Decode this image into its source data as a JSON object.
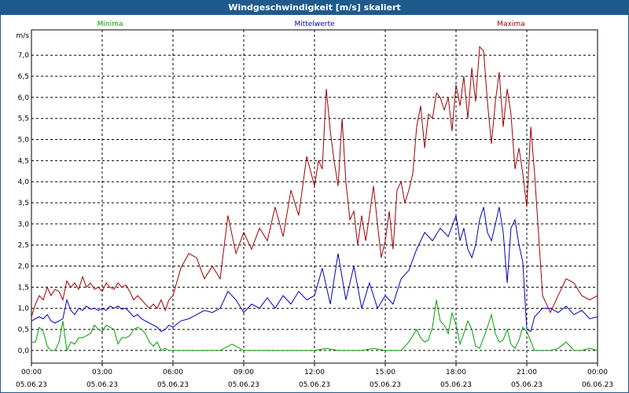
{
  "window": {
    "title": "Windgeschwindigkeit [m/s] skaliert"
  },
  "chart_data": {
    "type": "line",
    "title": "Windgeschwindigkeit [m/s] skaliert",
    "ylabel": "m/s",
    "xlabel": "",
    "ylim": [
      -0.3,
      7.6
    ],
    "xlim": [
      0,
      24
    ],
    "grid": true,
    "legend_placement": "top",
    "y_ticks": [
      "0,0",
      "0,5",
      "1,0",
      "1,5",
      "2,0",
      "2,5",
      "3,0",
      "3,5",
      "4,0",
      "4,5",
      "5,0",
      "5,5",
      "6,0",
      "6,5",
      "7,0"
    ],
    "x_ticks": [
      {
        "time": "00:00",
        "date": "05.06.23"
      },
      {
        "time": "03:00",
        "date": "05.06.23"
      },
      {
        "time": "06:00",
        "date": "05.06.23"
      },
      {
        "time": "09:00",
        "date": "05.06.23"
      },
      {
        "time": "12:00",
        "date": "05.06.23"
      },
      {
        "time": "15:00",
        "date": "05.06.23"
      },
      {
        "time": "18:00",
        "date": "05.06.23"
      },
      {
        "time": "21:00",
        "date": "05.06.23"
      },
      {
        "time": "00:00",
        "date": "06.06.23"
      }
    ],
    "series": [
      {
        "name": "Minima",
        "color": "#00a000",
        "x": [
          0,
          0.17,
          0.33,
          0.5,
          0.67,
          0.83,
          1,
          1.17,
          1.33,
          1.5,
          1.67,
          1.83,
          2,
          2.17,
          2.33,
          2.5,
          2.67,
          2.83,
          3,
          3.17,
          3.33,
          3.5,
          3.67,
          3.83,
          4,
          4.17,
          4.33,
          4.5,
          4.67,
          4.83,
          5,
          5.17,
          5.33,
          5.5,
          5.67,
          5.83,
          6,
          6.5,
          7,
          7.5,
          8,
          8.5,
          9,
          9.5,
          10,
          10.5,
          11,
          11.5,
          12,
          12.5,
          13,
          13.5,
          14,
          14.5,
          15,
          15.33,
          15.67,
          16,
          16.17,
          16.33,
          16.5,
          16.67,
          16.83,
          17,
          17.17,
          17.33,
          17.5,
          17.67,
          17.83,
          18,
          18.17,
          18.33,
          18.5,
          18.67,
          18.83,
          19,
          19.17,
          19.33,
          19.5,
          19.67,
          19.83,
          20,
          20.17,
          20.33,
          20.5,
          20.67,
          20.83,
          21,
          21.33,
          21.67,
          22,
          22.33,
          22.67,
          23,
          23.33,
          23.67,
          24
        ],
        "values": [
          0.2,
          0.2,
          0.55,
          0.45,
          0.1,
          0.0,
          0.0,
          0.2,
          0.7,
          0.0,
          0.2,
          0.15,
          0.3,
          0.3,
          0.35,
          0.4,
          0.6,
          0.5,
          0.45,
          0.6,
          0.55,
          0.5,
          0.15,
          0.3,
          0.3,
          0.35,
          0.5,
          0.55,
          0.5,
          0.4,
          0.2,
          0.1,
          0.2,
          0.0,
          0.05,
          0.0,
          0.0,
          0.0,
          0.0,
          0.0,
          0.0,
          0.15,
          0.0,
          0.0,
          0.0,
          0.0,
          0.0,
          0.0,
          0.0,
          0.05,
          0.0,
          0.0,
          0.0,
          0.05,
          0.0,
          0.0,
          0.0,
          0.2,
          0.35,
          0.5,
          0.3,
          0.2,
          0.25,
          0.55,
          1.2,
          0.7,
          0.6,
          0.4,
          0.9,
          0.6,
          0.15,
          0.4,
          0.7,
          0.5,
          0.1,
          0.05,
          0.3,
          0.55,
          0.85,
          0.4,
          0.2,
          0.25,
          0.5,
          0.15,
          0.05,
          0.25,
          0.55,
          0.45,
          0.0,
          0.0,
          0.0,
          0.05,
          0.2,
          0.0,
          0.0,
          0.05,
          0.0
        ]
      },
      {
        "name": "Mittelwerte",
        "color": "#0000c0",
        "x": [
          0,
          0.17,
          0.33,
          0.5,
          0.67,
          0.83,
          1,
          1.17,
          1.33,
          1.5,
          1.67,
          1.83,
          2,
          2.17,
          2.33,
          2.5,
          2.67,
          2.83,
          3,
          3.17,
          3.33,
          3.5,
          3.67,
          3.83,
          4,
          4.17,
          4.33,
          4.5,
          4.67,
          4.83,
          5,
          5.17,
          5.33,
          5.5,
          5.67,
          5.83,
          6,
          6.33,
          6.67,
          7,
          7.33,
          7.67,
          8,
          8.33,
          8.67,
          9,
          9.33,
          9.67,
          10,
          10.33,
          10.67,
          11,
          11.33,
          11.67,
          12,
          12.33,
          12.67,
          13,
          13.33,
          13.67,
          14,
          14.33,
          14.67,
          15,
          15.33,
          15.67,
          16,
          16.33,
          16.67,
          17,
          17.33,
          17.67,
          18,
          18.17,
          18.33,
          18.5,
          18.67,
          18.83,
          19,
          19.17,
          19.33,
          19.5,
          19.67,
          19.83,
          20,
          20.17,
          20.33,
          20.5,
          20.67,
          20.83,
          21,
          21.17,
          21.33,
          21.67,
          22,
          22.33,
          22.67,
          23,
          23.33,
          23.67,
          24
        ],
        "values": [
          0.7,
          0.75,
          0.8,
          0.75,
          0.85,
          0.7,
          0.65,
          0.7,
          0.75,
          1.2,
          0.95,
          0.85,
          1.0,
          0.95,
          1.05,
          0.98,
          1.0,
          0.95,
          1.0,
          0.95,
          1.05,
          1.0,
          1.05,
          0.98,
          1.0,
          0.9,
          0.8,
          0.85,
          0.75,
          0.7,
          0.65,
          0.6,
          0.55,
          0.45,
          0.5,
          0.6,
          0.55,
          0.7,
          0.75,
          0.85,
          0.95,
          0.9,
          1.0,
          1.4,
          1.2,
          0.9,
          1.1,
          1.0,
          1.25,
          1.0,
          1.3,
          1.1,
          1.4,
          1.2,
          1.3,
          1.95,
          1.1,
          2.3,
          1.2,
          2.0,
          1.0,
          1.6,
          1.0,
          1.3,
          1.1,
          1.7,
          1.9,
          2.4,
          2.8,
          2.6,
          2.9,
          2.7,
          3.2,
          2.6,
          2.9,
          2.4,
          2.2,
          2.5,
          3.1,
          3.4,
          2.8,
          2.6,
          3.0,
          3.4,
          2.8,
          1.6,
          2.9,
          3.1,
          2.5,
          2.1,
          0.5,
          0.45,
          0.8,
          1.0,
          1.0,
          0.9,
          1.05,
          0.85,
          0.95,
          0.75,
          0.8
        ]
      },
      {
        "name": "Maxima",
        "color": "#a00000",
        "x": [
          0,
          0.17,
          0.33,
          0.5,
          0.67,
          0.83,
          1,
          1.17,
          1.33,
          1.5,
          1.67,
          1.83,
          2,
          2.17,
          2.33,
          2.5,
          2.67,
          2.83,
          3,
          3.17,
          3.33,
          3.5,
          3.67,
          3.83,
          4,
          4.17,
          4.33,
          4.5,
          4.67,
          4.83,
          5,
          5.17,
          5.33,
          5.5,
          5.67,
          5.83,
          6,
          6.33,
          6.67,
          7,
          7.33,
          7.67,
          8,
          8.33,
          8.67,
          9,
          9.33,
          9.67,
          10,
          10.33,
          10.67,
          11,
          11.33,
          11.67,
          12,
          12.17,
          12.33,
          12.5,
          12.67,
          12.83,
          13,
          13.17,
          13.33,
          13.5,
          13.67,
          13.83,
          14,
          14.17,
          14.33,
          14.5,
          14.67,
          14.83,
          15,
          15.17,
          15.33,
          15.5,
          15.67,
          15.83,
          16,
          16.17,
          16.33,
          16.5,
          16.67,
          16.83,
          17,
          17.17,
          17.33,
          17.5,
          17.67,
          17.83,
          18,
          18.17,
          18.33,
          18.5,
          18.67,
          18.83,
          19,
          19.17,
          19.33,
          19.5,
          19.67,
          19.83,
          20,
          20.17,
          20.33,
          20.5,
          20.67,
          20.83,
          21,
          21.17,
          21.33,
          21.67,
          22,
          22.33,
          22.67,
          23,
          23.33,
          23.67,
          24
        ],
        "values": [
          0.8,
          1.1,
          1.3,
          1.2,
          1.5,
          1.3,
          1.45,
          1.4,
          1.2,
          1.65,
          1.5,
          1.6,
          1.45,
          1.75,
          1.5,
          1.6,
          1.45,
          1.5,
          1.4,
          1.6,
          1.5,
          1.45,
          1.6,
          1.5,
          1.55,
          1.4,
          1.2,
          1.3,
          1.2,
          1.1,
          1.0,
          1.1,
          1.0,
          1.2,
          0.95,
          1.2,
          1.3,
          1.95,
          2.3,
          2.2,
          1.7,
          2.0,
          1.7,
          3.2,
          2.3,
          2.8,
          2.4,
          2.9,
          2.6,
          3.4,
          2.7,
          3.8,
          3.2,
          4.6,
          3.9,
          4.5,
          4.3,
          6.2,
          5.2,
          4.5,
          3.9,
          5.5,
          4.0,
          3.1,
          3.3,
          2.5,
          3.2,
          2.6,
          3.2,
          3.9,
          3.0,
          2.2,
          2.6,
          3.3,
          2.4,
          3.8,
          4.0,
          3.5,
          3.8,
          4.2,
          5.3,
          5.8,
          4.8,
          5.6,
          5.5,
          6.1,
          6.0,
          5.7,
          6.0,
          5.2,
          6.3,
          5.8,
          6.5,
          5.5,
          6.7,
          5.9,
          7.2,
          7.1,
          5.9,
          4.9,
          5.9,
          6.6,
          5.3,
          6.2,
          5.6,
          4.3,
          4.8,
          4.2,
          3.4,
          5.3,
          4.2,
          1.3,
          0.9,
          1.3,
          1.7,
          1.6,
          1.3,
          1.2,
          1.3
        ]
      }
    ]
  }
}
